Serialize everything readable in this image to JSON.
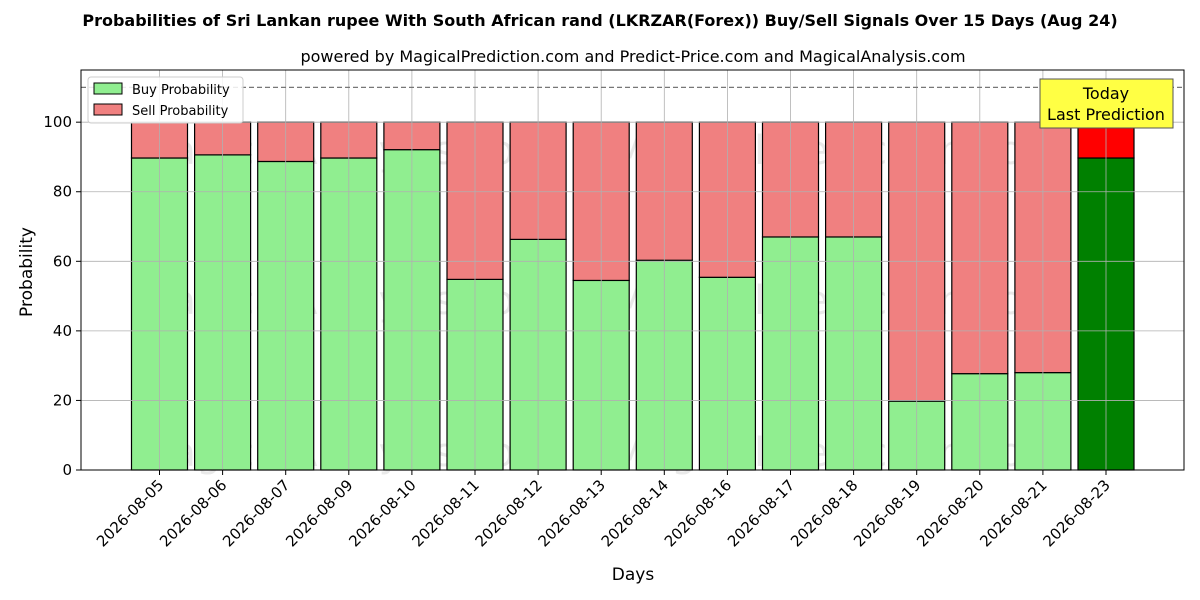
{
  "chart_data": {
    "type": "bar",
    "stacked": true,
    "title": "Probabilities of Sri Lankan rupee With South African rand (LKRZAR(Forex)) Buy/Sell Signals Over 15 Days (Aug 24)",
    "subtitle": "powered by MagicalPrediction.com and Predict-Price.com and MagicalAnalysis.com",
    "xlabel": "Days",
    "ylabel": "Probability",
    "ylim": [
      0,
      115
    ],
    "yticks": [
      0,
      20,
      40,
      60,
      80,
      100
    ],
    "reference_line": 110,
    "grid": true,
    "legend_position": "top-left",
    "categories": [
      "2026-08-05",
      "2026-08-06",
      "2026-08-07",
      "2026-08-09",
      "2026-08-10",
      "2026-08-11",
      "2026-08-12",
      "2026-08-13",
      "2026-08-14",
      "2026-08-16",
      "2026-08-17",
      "2026-08-18",
      "2026-08-19",
      "2026-08-20",
      "2026-08-21",
      "2026-08-23"
    ],
    "series": [
      {
        "name": "Buy Probability",
        "color": "#90ee90",
        "values": [
          89.7,
          90.6,
          88.7,
          89.7,
          92.1,
          54.8,
          66.3,
          54.5,
          60.3,
          55.4,
          67.0,
          67.0,
          19.8,
          27.7,
          28.0,
          89.7
        ]
      },
      {
        "name": "Sell Probability",
        "color": "#f08080",
        "values": [
          10.3,
          9.4,
          11.3,
          10.3,
          7.9,
          45.2,
          33.7,
          45.5,
          39.7,
          44.6,
          33.0,
          33.0,
          80.2,
          72.3,
          72.0,
          10.3
        ]
      }
    ],
    "highlight": {
      "index": 15,
      "buy_color": "#008000",
      "sell_color": "#ff0000"
    },
    "annotation": {
      "line1": "Today",
      "line2": "Last Prediction",
      "bg": "#ffff44"
    },
    "watermarks": [
      "MagicalAnalysis.com",
      "MagicalPrediction.com"
    ]
  }
}
